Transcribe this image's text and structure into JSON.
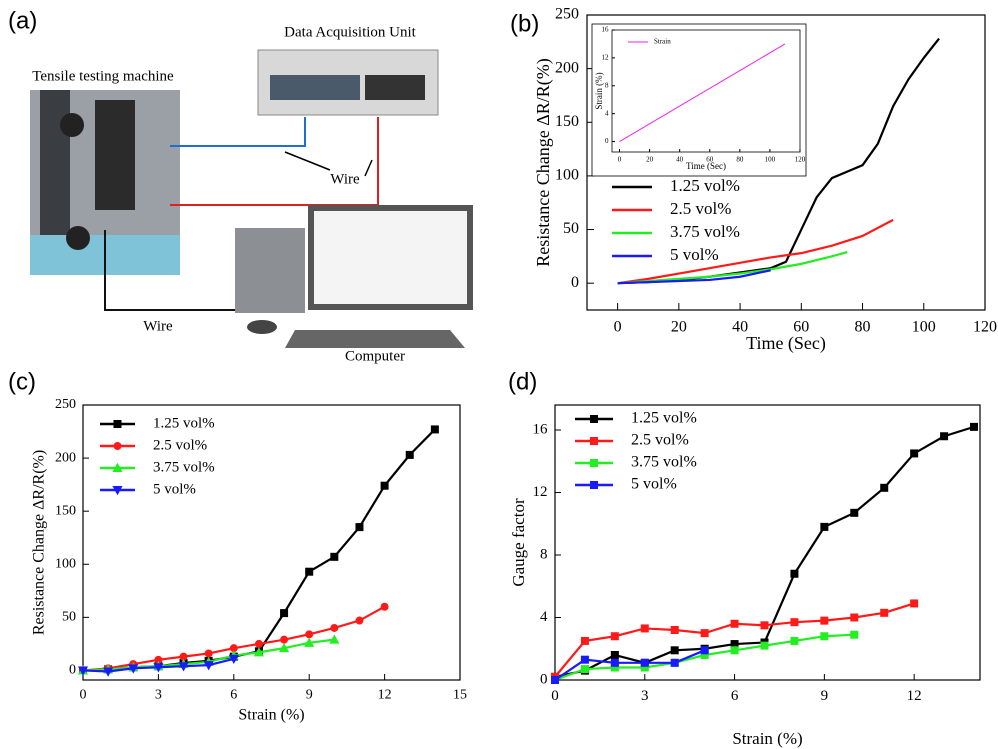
{
  "diagram": {
    "panel_label": "(a)",
    "daq_label": "Data Acquisition Unit",
    "machine_label": "Tensile testing machine",
    "wire_label_1": "Wire",
    "wire_label_2": "Wire",
    "computer_label": "Computer"
  },
  "chart_data": [
    {
      "type": "line",
      "panel_label": "(b)",
      "xlabel": "Time (Sec)",
      "ylabel": "Resistance Change ΔR/R(%)",
      "xlim": [
        -10,
        120
      ],
      "ylim": [
        -25,
        250
      ],
      "xticks": [
        0,
        20,
        40,
        60,
        80,
        100,
        120
      ],
      "yticks": [
        0,
        50,
        100,
        150,
        200,
        250
      ],
      "series": [
        {
          "name": "1.25 vol%",
          "color": "#000000",
          "x": [
            0,
            10,
            20,
            30,
            40,
            50,
            55,
            60,
            65,
            70,
            75,
            80,
            85,
            90,
            95,
            100,
            105
          ],
          "values": [
            0,
            1,
            3,
            6,
            10,
            14,
            20,
            50,
            80,
            98,
            104,
            110,
            130,
            165,
            190,
            210,
            228
          ]
        },
        {
          "name": "2.5 vol%",
          "color": "#ff1a1a",
          "x": [
            0,
            10,
            20,
            30,
            40,
            50,
            60,
            70,
            80,
            90
          ],
          "values": [
            0,
            4,
            9,
            14,
            19,
            24,
            28,
            35,
            44,
            59
          ]
        },
        {
          "name": "3.75 vol%",
          "color": "#22ee22",
          "x": [
            0,
            10,
            20,
            30,
            40,
            50,
            60,
            70,
            75
          ],
          "values": [
            0,
            2,
            4,
            6,
            9,
            13,
            18,
            25,
            29
          ]
        },
        {
          "name": "5 vol%",
          "color": "#1a1aff",
          "x": [
            0,
            10,
            20,
            30,
            40,
            50
          ],
          "values": [
            0,
            1,
            2,
            3,
            6,
            12
          ]
        }
      ]
    },
    {
      "type": "line",
      "xlabel": "Time (Sec)",
      "ylabel": "Strain (%)",
      "xlim": [
        -5,
        120
      ],
      "ylim": [
        -1.5,
        16
      ],
      "xticks": [
        0,
        20,
        40,
        60,
        80,
        100,
        120
      ],
      "yticks": [
        0,
        4,
        8,
        12,
        16
      ],
      "series": [
        {
          "name": "Strain",
          "color": "#ee22ee",
          "x": [
            0,
            110
          ],
          "values": [
            0,
            14
          ]
        }
      ]
    },
    {
      "type": "line",
      "panel_label": "(c)",
      "xlabel": "Strain (%)",
      "ylabel": "Resistance Change ΔR/R(%)",
      "xlim": [
        0,
        15
      ],
      "ylim": [
        -9,
        250
      ],
      "xticks": [
        0,
        3,
        6,
        9,
        12,
        15
      ],
      "yticks": [
        0,
        50,
        100,
        150,
        200,
        250
      ],
      "series": [
        {
          "name": "1.25 vol%",
          "color": "#000000",
          "marker": "square",
          "x": [
            0,
            1,
            2,
            3,
            4,
            5,
            6,
            7,
            8,
            9,
            10,
            11,
            12,
            13,
            14
          ],
          "values": [
            0,
            1,
            3,
            4,
            7,
            9,
            13,
            18,
            54,
            93,
            107,
            135,
            174,
            203,
            227
          ]
        },
        {
          "name": "2.5 vol%",
          "color": "#ff1a1a",
          "marker": "circle",
          "x": [
            0,
            1,
            2,
            3,
            4,
            5,
            6,
            7,
            8,
            9,
            10,
            11,
            12
          ],
          "values": [
            0,
            2,
            6,
            10,
            13,
            16,
            21,
            25,
            29,
            34,
            40,
            47,
            60
          ]
        },
        {
          "name": "3.75 vol%",
          "color": "#22ee22",
          "marker": "triangle",
          "x": [
            0,
            1,
            2,
            3,
            4,
            5,
            6,
            7,
            8,
            9,
            10
          ],
          "values": [
            0,
            1,
            3,
            4,
            6,
            8,
            14,
            17,
            21,
            26,
            29
          ]
        },
        {
          "name": "5 vol%",
          "color": "#1a1aff",
          "marker": "triangle-down",
          "x": [
            0,
            1,
            2,
            3,
            4,
            5,
            6
          ],
          "values": [
            0,
            -1,
            2,
            3,
            4,
            5,
            11
          ]
        }
      ]
    },
    {
      "type": "line",
      "panel_label": "(d)",
      "xlabel": "Strain (%)",
      "ylabel": "Gauge factor",
      "xlim": [
        0,
        14.2
      ],
      "ylim": [
        0,
        17.6
      ],
      "xticks": [
        0,
        3,
        6,
        9,
        12
      ],
      "yticks": [
        0,
        4,
        8,
        12,
        16
      ],
      "series": [
        {
          "name": "1.25 vol%",
          "color": "#000000",
          "marker": "square",
          "x": [
            0,
            1,
            2,
            3,
            4,
            5,
            6,
            7,
            8,
            9,
            10,
            11,
            12,
            13,
            14
          ],
          "values": [
            0.2,
            0.6,
            1.6,
            1.1,
            1.9,
            2.0,
            2.3,
            2.4,
            6.8,
            9.8,
            10.7,
            12.3,
            14.5,
            15.6,
            16.2
          ]
        },
        {
          "name": "2.5 vol%",
          "color": "#ff1a1a",
          "marker": "square",
          "x": [
            0,
            1,
            2,
            3,
            4,
            5,
            6,
            7,
            8,
            9,
            10,
            11,
            12
          ],
          "values": [
            0.2,
            2.5,
            2.8,
            3.3,
            3.2,
            3.0,
            3.6,
            3.5,
            3.7,
            3.8,
            4.0,
            4.3,
            4.9
          ]
        },
        {
          "name": "3.75 vol%",
          "color": "#22ee22",
          "marker": "square",
          "x": [
            0,
            1,
            2,
            3,
            4,
            5,
            6,
            7,
            8,
            9,
            10
          ],
          "values": [
            0,
            0.7,
            0.8,
            0.8,
            1.1,
            1.6,
            1.9,
            2.2,
            2.5,
            2.8,
            2.9
          ]
        },
        {
          "name": "5 vol%",
          "color": "#1a1aff",
          "marker": "square",
          "x": [
            0,
            1,
            2,
            3,
            4,
            5
          ],
          "values": [
            0,
            1.3,
            1.1,
            1.1,
            1.1,
            1.9
          ]
        }
      ]
    }
  ]
}
